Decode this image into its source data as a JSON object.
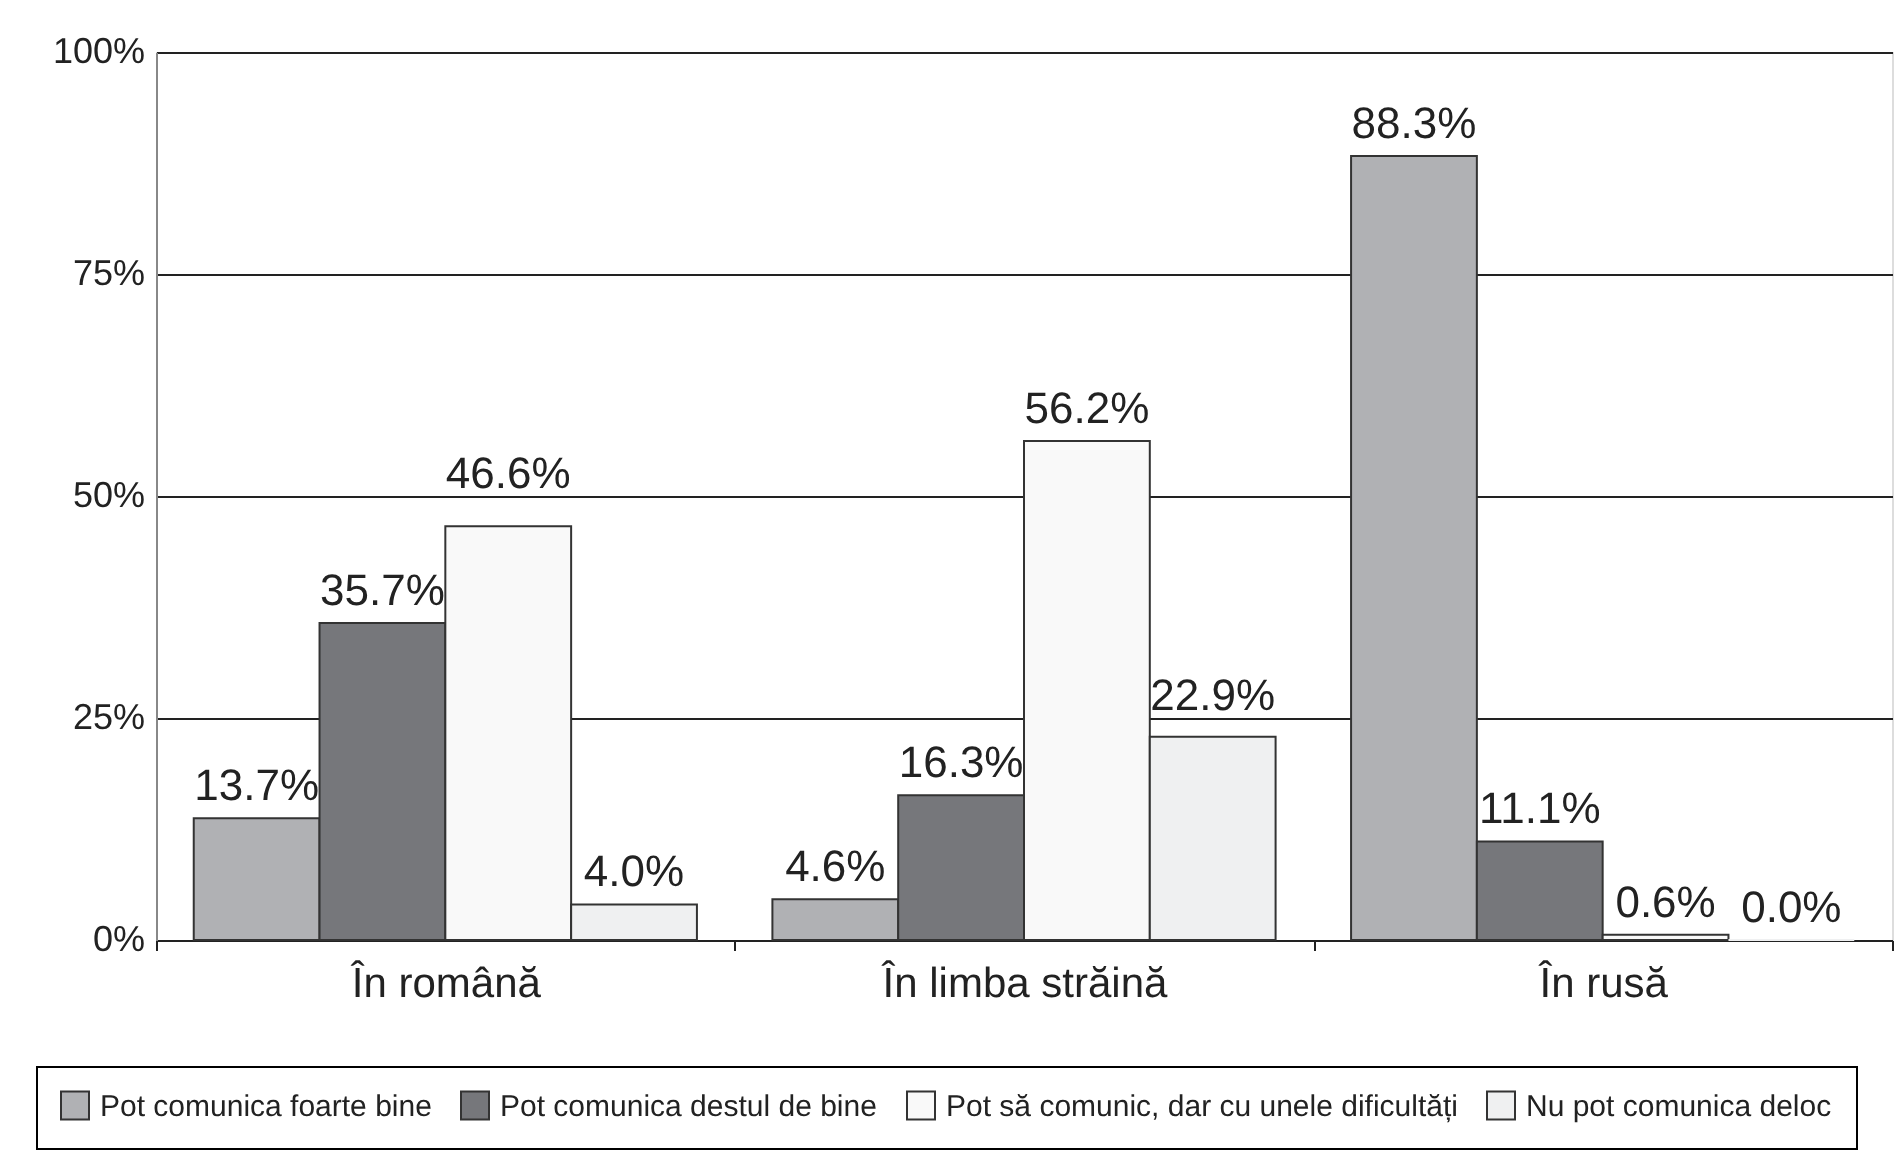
{
  "chart_data": {
    "type": "bar",
    "categories": [
      "În română",
      "În limba străină",
      "În rusă"
    ],
    "series": [
      {
        "name": "Pot comunica foarte bine",
        "color": "#b0b1b4",
        "values": [
          13.7,
          4.6,
          88.3
        ],
        "value_labels": [
          "13.7%",
          "4.6%",
          "88.3%"
        ]
      },
      {
        "name": "Pot comunica destul de bine",
        "color": "#76777b",
        "values": [
          35.7,
          16.3,
          11.1
        ],
        "value_labels": [
          "35.7%",
          "16.3%",
          "11.1%"
        ]
      },
      {
        "name": "Pot să comunic, dar cu unele dificultăți",
        "color": "#f9f9f9",
        "values": [
          46.6,
          56.2,
          0.6
        ],
        "value_labels": [
          "46.6%",
          "56.2%",
          "0.6%"
        ]
      },
      {
        "name": "Nu pot comunica deloc",
        "color": "#eff0f1",
        "values": [
          4.0,
          22.9,
          0.0
        ],
        "value_labels": [
          "4.0%",
          "22.9%",
          "0.0%"
        ]
      }
    ],
    "ylim": [
      0,
      100
    ],
    "yticks": [
      {
        "value": 0,
        "label": "0%"
      },
      {
        "value": 25,
        "label": "25%"
      },
      {
        "value": 50,
        "label": "50%"
      },
      {
        "value": 75,
        "label": "75%"
      },
      {
        "value": 100,
        "label": "100%"
      }
    ],
    "grid": "y",
    "legend": "bottom"
  }
}
